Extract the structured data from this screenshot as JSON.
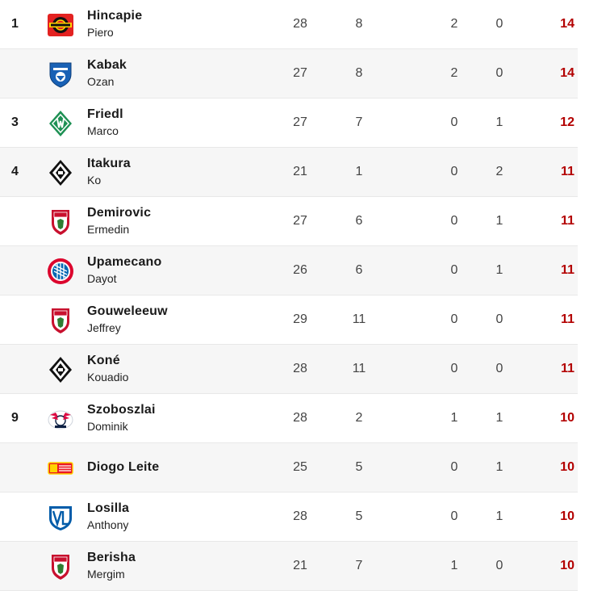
{
  "rows": [
    {
      "rank": "1",
      "first": "Hincapie",
      "last": "Piero",
      "club": "leverkusen",
      "c1": "28",
      "c2": "8",
      "c3": "2",
      "c4": "0",
      "pts": "14"
    },
    {
      "rank": "",
      "first": "Kabak",
      "last": "Ozan",
      "club": "hoffenheim",
      "c1": "27",
      "c2": "8",
      "c3": "2",
      "c4": "0",
      "pts": "14"
    },
    {
      "rank": "3",
      "first": "Friedl",
      "last": "Marco",
      "club": "werder",
      "c1": "27",
      "c2": "7",
      "c3": "0",
      "c4": "1",
      "pts": "12"
    },
    {
      "rank": "4",
      "first": "Itakura",
      "last": "Ko",
      "club": "gladbach",
      "c1": "21",
      "c2": "1",
      "c3": "0",
      "c4": "2",
      "pts": "11"
    },
    {
      "rank": "",
      "first": "Demirovic",
      "last": "Ermedin",
      "club": "augsburg",
      "c1": "27",
      "c2": "6",
      "c3": "0",
      "c4": "1",
      "pts": "11"
    },
    {
      "rank": "",
      "first": "Upamecano",
      "last": "Dayot",
      "club": "bayern",
      "c1": "26",
      "c2": "6",
      "c3": "0",
      "c4": "1",
      "pts": "11"
    },
    {
      "rank": "",
      "first": "Gouweleeuw",
      "last": "Jeffrey",
      "club": "augsburg",
      "c1": "29",
      "c2": "11",
      "c3": "0",
      "c4": "0",
      "pts": "11"
    },
    {
      "rank": "",
      "first": "Koné",
      "last": "Kouadio",
      "club": "gladbach",
      "c1": "28",
      "c2": "11",
      "c3": "0",
      "c4": "0",
      "pts": "11"
    },
    {
      "rank": "9",
      "first": "Szoboszlai",
      "last": "Dominik",
      "club": "leipzig",
      "c1": "28",
      "c2": "2",
      "c3": "1",
      "c4": "1",
      "pts": "10"
    },
    {
      "rank": "",
      "first": "Diogo Leite",
      "last": "",
      "club": "union",
      "c1": "25",
      "c2": "5",
      "c3": "0",
      "c4": "1",
      "pts": "10"
    },
    {
      "rank": "",
      "first": "Losilla",
      "last": "Anthony",
      "club": "bochum",
      "c1": "28",
      "c2": "5",
      "c3": "0",
      "c4": "1",
      "pts": "10"
    },
    {
      "rank": "",
      "first": "Berisha",
      "last": "Mergim",
      "club": "augsburg",
      "c1": "21",
      "c2": "7",
      "c3": "1",
      "c4": "0",
      "pts": "10"
    }
  ],
  "colors": {
    "points": "#b30000",
    "alt_row": "#f6f6f6",
    "divider": "#e8e8e8"
  }
}
